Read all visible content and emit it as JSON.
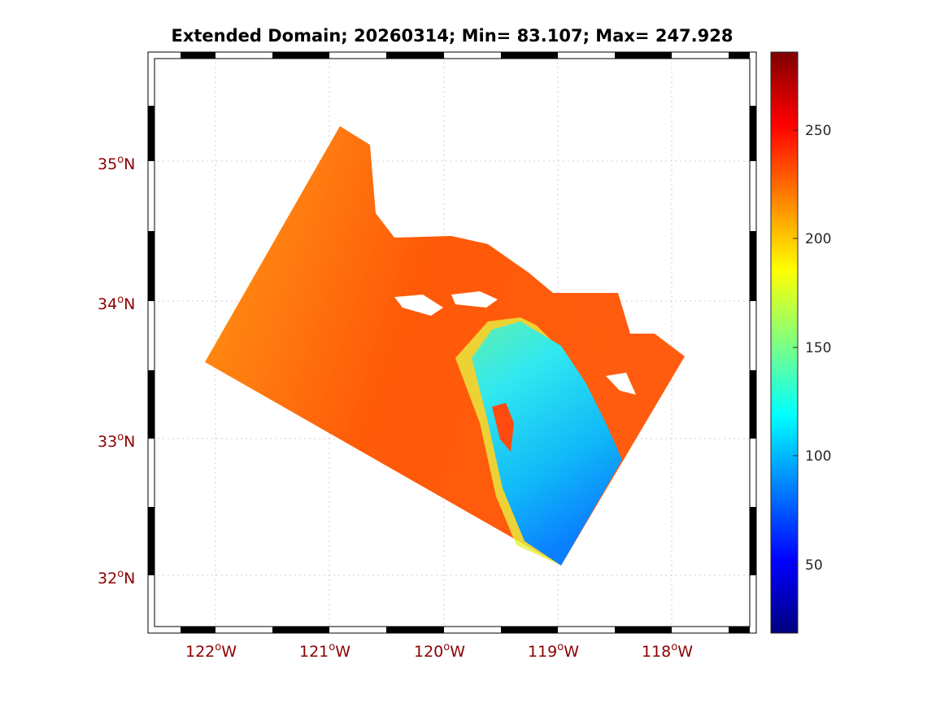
{
  "title": "Extended Domain; 20260314; Min= 83.107; Max= 247.928",
  "map": {
    "lon_range": [
      -122.59,
      -117.26
    ],
    "lat_range": [
      31.58,
      35.79
    ],
    "lon_labels": [
      "122",
      "121",
      "120",
      "119",
      "118"
    ],
    "lon_suffix": "W",
    "lat_labels": [
      "35",
      "34",
      "33",
      "32"
    ],
    "lat_suffix": "N",
    "degree_symbol": "o",
    "date": "20260314",
    "min": 83.107,
    "max": 247.928
  },
  "colorbar": {
    "colormap": "jet",
    "range": [
      18.5,
      286
    ],
    "ticks": [
      "50",
      "100",
      "150",
      "200",
      "250"
    ]
  },
  "colors": {
    "label": "#8b0000",
    "grid": "#e8c8cc"
  }
}
